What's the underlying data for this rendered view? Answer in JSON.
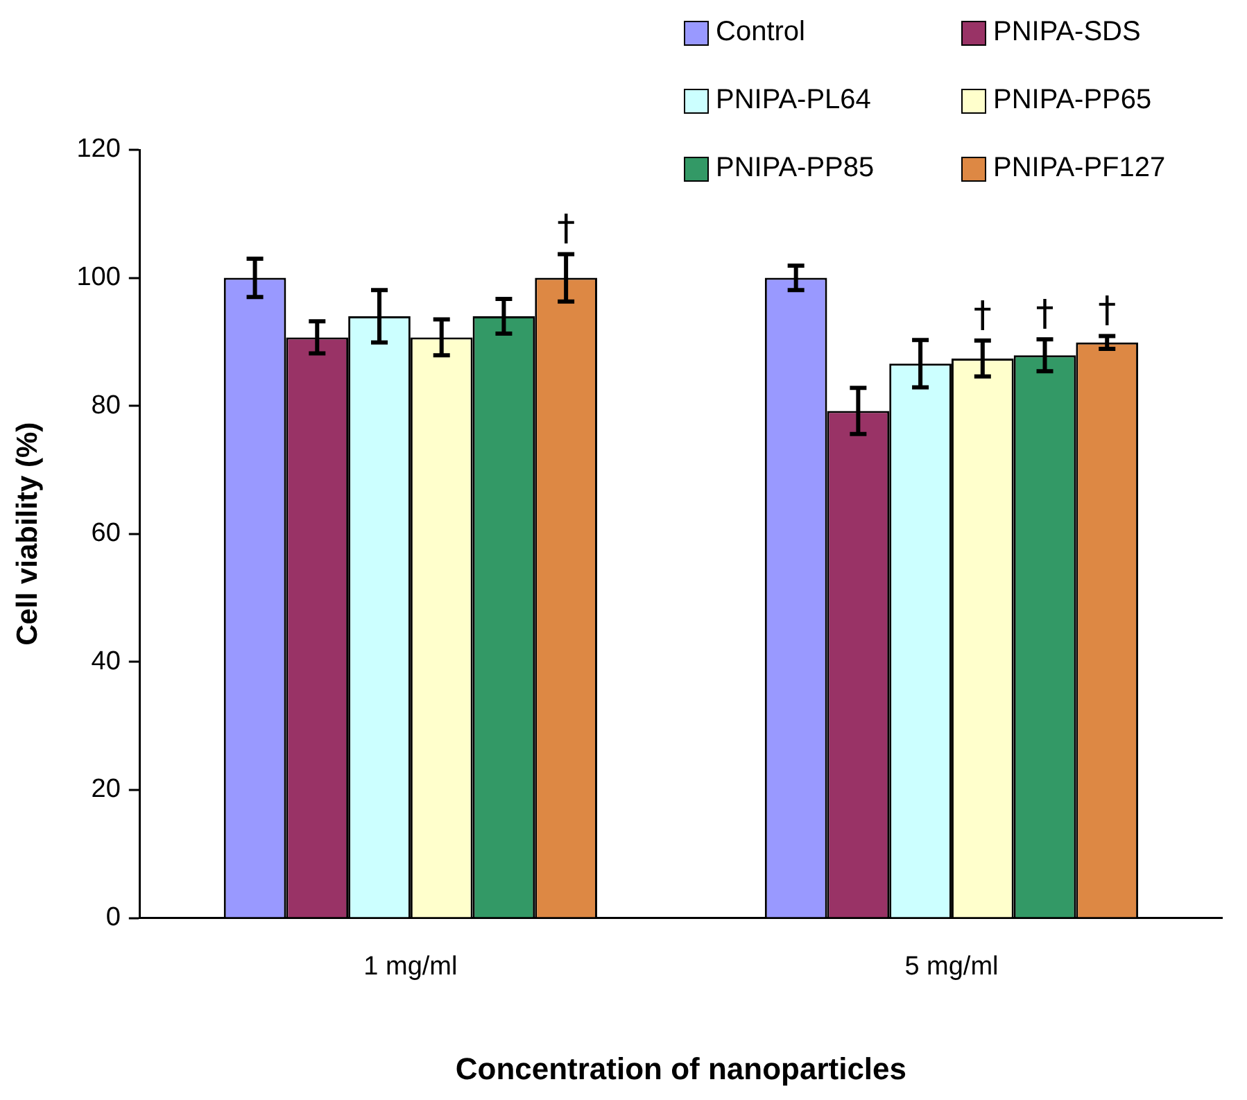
{
  "chart_data": {
    "type": "bar",
    "xlabel": "Concentration of nanoparticles",
    "ylabel": "Cell viability (%)",
    "categories": [
      "1 mg/ml",
      "5 mg/ml"
    ],
    "series": [
      {
        "name": "Control",
        "color": "#9999ff",
        "values": [
          100,
          100
        ],
        "errors": [
          3,
          1.9
        ]
      },
      {
        "name": "PNIPA-SDS",
        "color": "#993366",
        "values": [
          90.7,
          79.2
        ],
        "errors": [
          2.5,
          3.6
        ]
      },
      {
        "name": "PNIPA-PL64",
        "color": "#ccffff",
        "values": [
          94,
          86.6
        ],
        "errors": [
          4.1,
          3.7
        ]
      },
      {
        "name": "PNIPA-PP65",
        "color": "#ffffcc",
        "values": [
          90.7,
          87.4
        ],
        "errors": [
          2.8,
          2.8
        ],
        "value_labels": [
          null,
          "†"
        ]
      },
      {
        "name": "PNIPA-PP85",
        "color": "#339966",
        "values": [
          94,
          87.9
        ],
        "errors": [
          2.7,
          2.5
        ],
        "value_labels": [
          null,
          "†"
        ]
      },
      {
        "name": "PNIPA-PF127",
        "color": "#dd8844",
        "values": [
          100,
          89.9
        ],
        "errors": [
          3.7,
          1
        ],
        "value_labels": [
          "†",
          "†"
        ]
      }
    ],
    "ylim": [
      0,
      120
    ],
    "yticks": [
      0,
      20,
      40,
      60,
      80,
      100,
      120
    ],
    "grid": false,
    "legend": "top right"
  }
}
